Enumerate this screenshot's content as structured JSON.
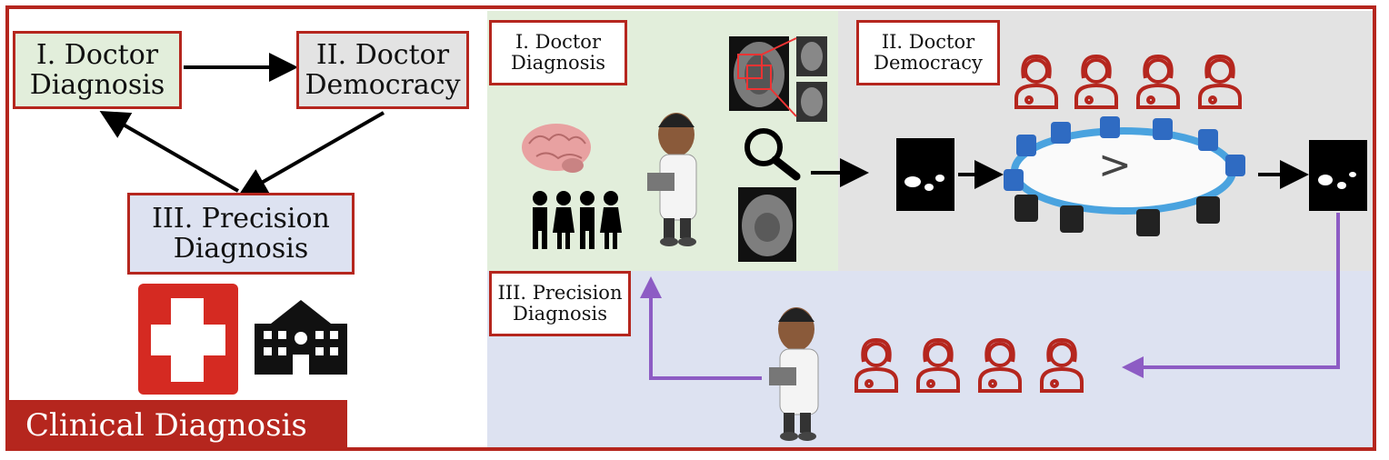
{
  "left": {
    "box1": {
      "line1": "I. Doctor",
      "line2": "Diagnosis"
    },
    "box2": {
      "line1": "II. Doctor",
      "line2": "Democracy"
    },
    "box3": {
      "line1": "III. Precision",
      "line2": "Diagnosis"
    },
    "footer": "Clinical Diagnosis"
  },
  "right": {
    "stage1": {
      "line1": "I. Doctor",
      "line2": "Diagnosis"
    },
    "stage2": {
      "line1": "II. Doctor",
      "line2": "Democracy"
    },
    "stage3": {
      "line1": "III. Precision",
      "line2": "Diagnosis"
    },
    "comparison_symbol": ">"
  },
  "colors": {
    "accent_red": "#b5261e",
    "stage1_bg": "#e2eedb",
    "stage2_bg": "#e3e3e3",
    "stage3_bg": "#dde2f1",
    "arrow_purple": "#8d5cc4"
  },
  "icons": [
    "medical-cross-icon",
    "hospital-icon",
    "brain-icon",
    "people-group-icon",
    "doctor-icon",
    "mri-scan-icon",
    "magnifier-icon",
    "mask-icon",
    "round-table-icon",
    "female-doctor-icon"
  ]
}
